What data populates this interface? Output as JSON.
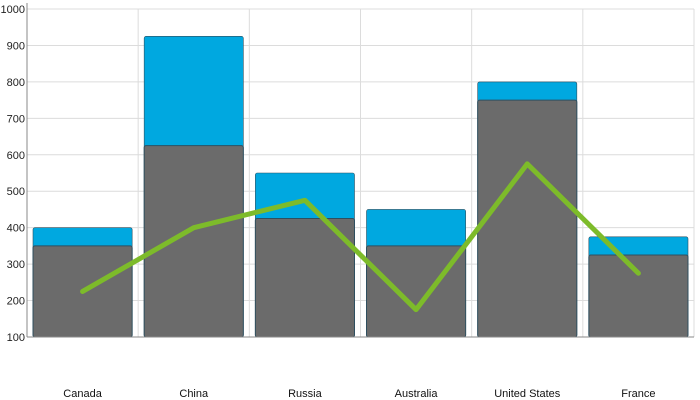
{
  "chart_data": {
    "type": "bar",
    "categories": [
      "Canada",
      "China",
      "Russia",
      "Australia",
      "United States",
      "France"
    ],
    "series": [
      {
        "type": "bar",
        "values": [
          400,
          925,
          550,
          450,
          800,
          375
        ]
      },
      {
        "type": "bar",
        "values": [
          350,
          625,
          425,
          350,
          750,
          325
        ]
      },
      {
        "type": "line",
        "values": [
          225,
          400,
          475,
          175,
          575,
          275
        ]
      }
    ],
    "ylim": [
      100,
      1000
    ],
    "yticks": [
      100,
      200,
      300,
      400,
      500,
      600,
      700,
      800,
      900,
      1000
    ],
    "grid": true,
    "colors": {
      "back_bar": "#00a8e0",
      "front_bar": "#6b6b6b",
      "bar_outline": "#2f4f5f",
      "line": "#7dbb2a",
      "grid": "#dcdcdc",
      "axis": "#888888"
    }
  }
}
